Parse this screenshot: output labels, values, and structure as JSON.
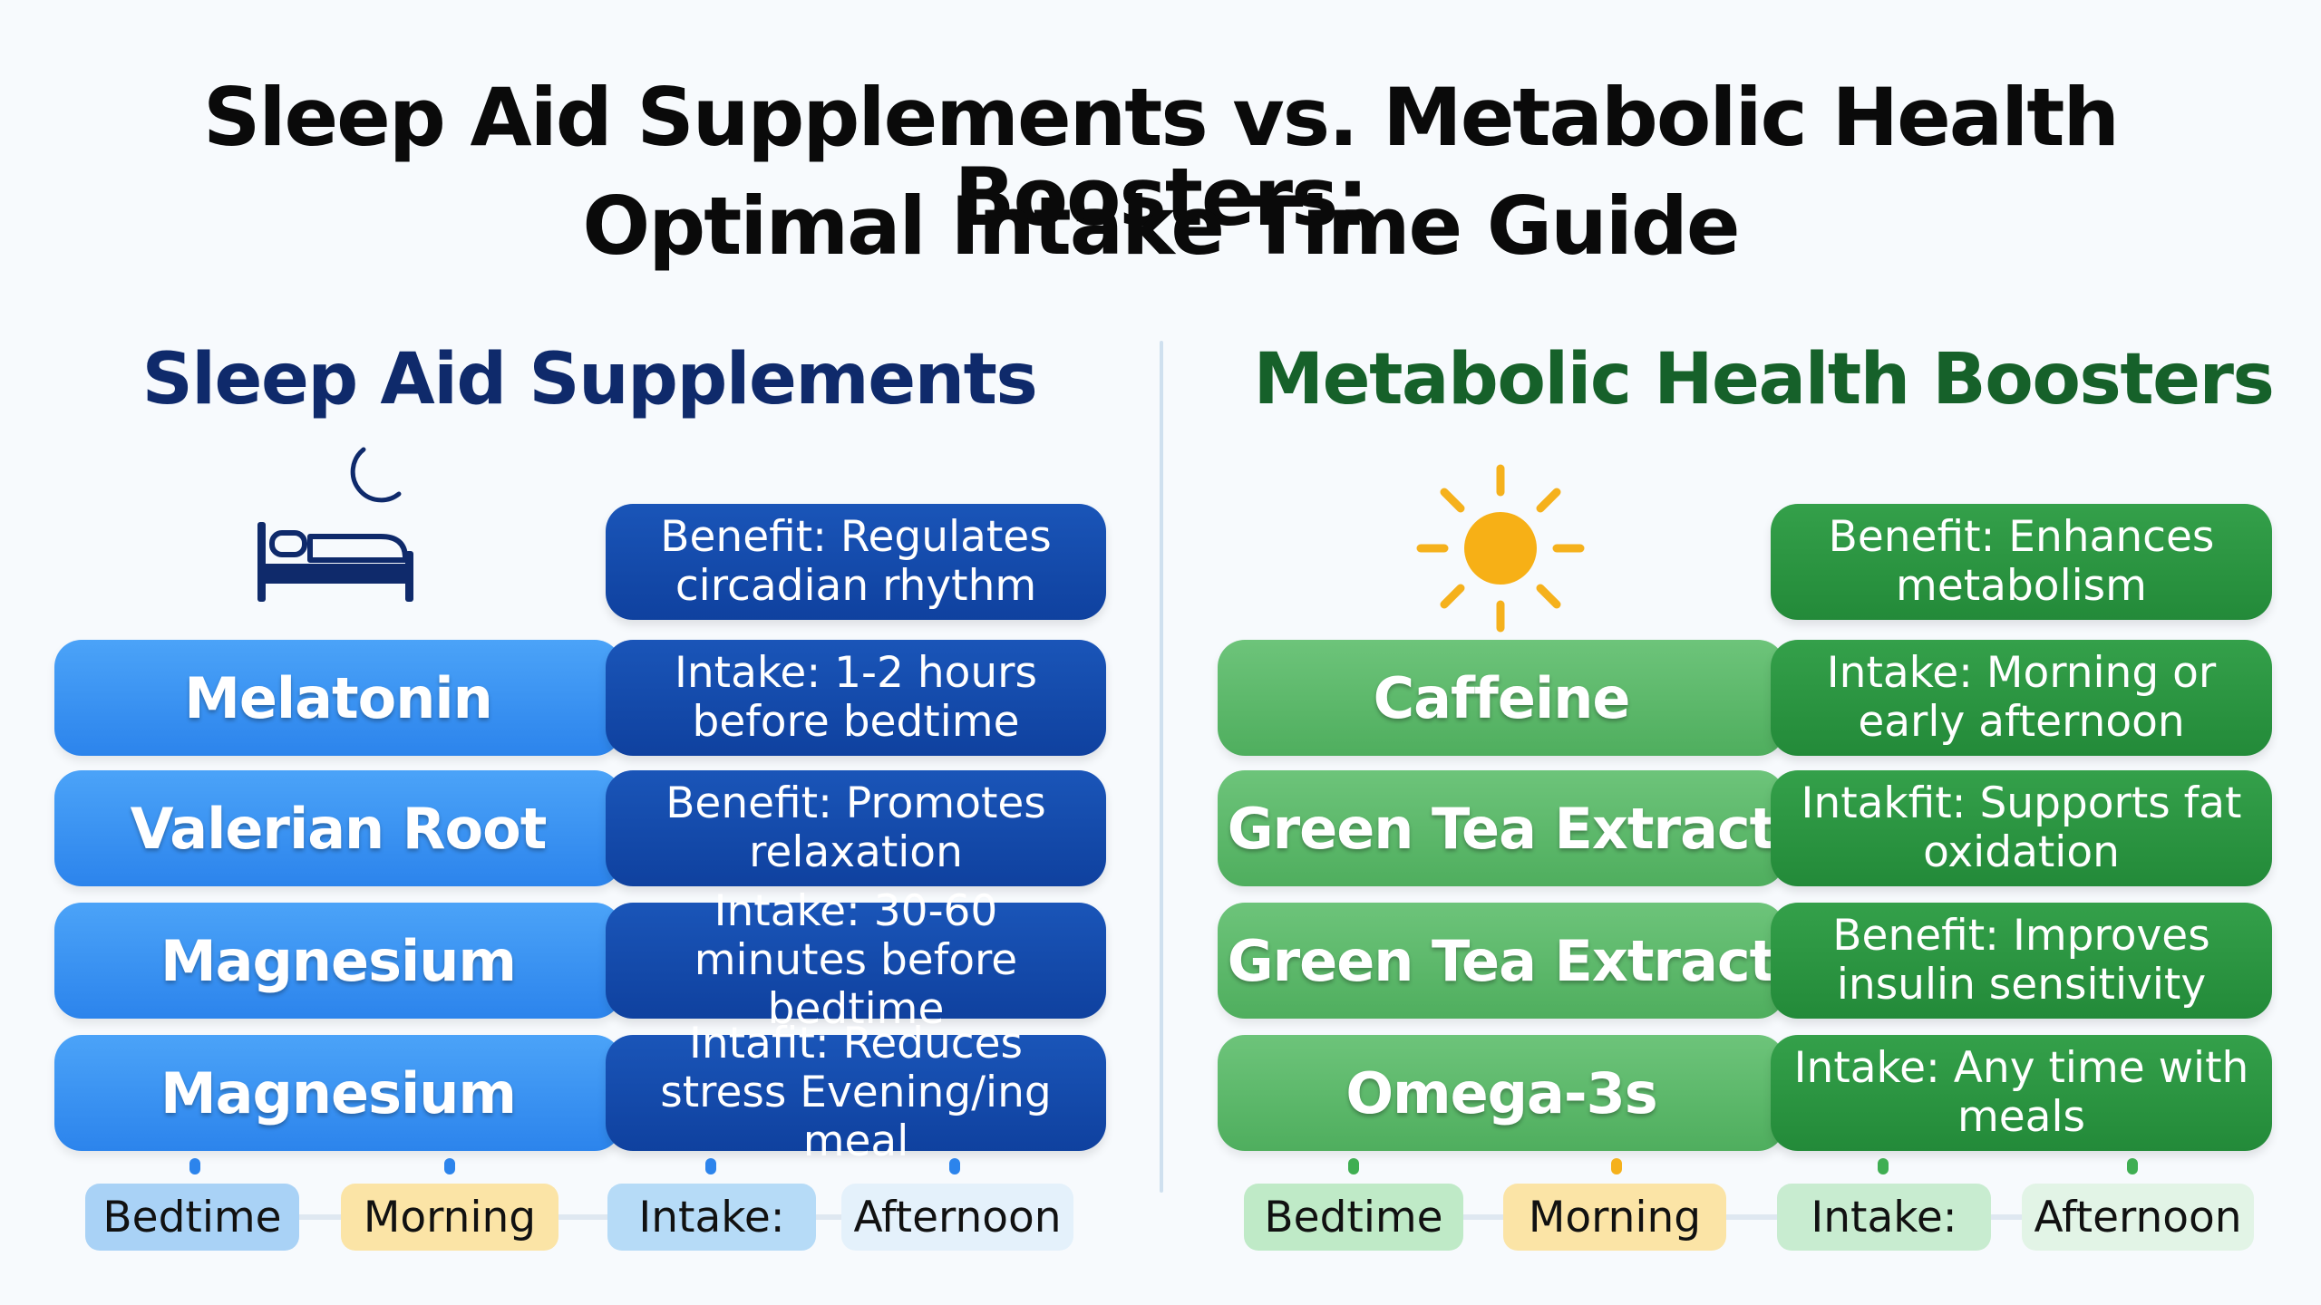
{
  "title": {
    "line1": "Sleep Aid Supplements vs. Metabolic Health Boosters:",
    "line2": "Optimal Intake Time Guide"
  },
  "sleep": {
    "heading": "Sleep Aid Supplements",
    "heading_color": "#0f2a6b",
    "icon": "bed-moon-icon",
    "top_info": "Benefit: Regulates circadian rhythm",
    "rows": [
      {
        "name": "Melatonin",
        "info": "Intake: 1-2 hours before bedtime"
      },
      {
        "name": "Valerian Root",
        "info": "Benefit: Promotes relaxation"
      },
      {
        "name": "Magnesium",
        "info": "Intake: 30-60 minutes before bedtime"
      },
      {
        "name": "Magnesium",
        "info": "Intafit: Reduces stress Evening/ing meal"
      }
    ],
    "timeline": [
      "Bedtime",
      "Morning",
      "Intake:",
      "Afternoon"
    ],
    "colors": {
      "name_pill": "#3b95f3",
      "info_pill": "#1549a8"
    }
  },
  "metabolic": {
    "heading": "Metabolic Health Boosters",
    "heading_color": "#16612a",
    "icon": "sun-icon",
    "top_info": "Benefit: Enhances metabolism",
    "rows": [
      {
        "name": "Caffeine",
        "info": "Intake: Morning or early afternoon"
      },
      {
        "name": "Green Tea Extract",
        "info": "Intakfit: Supports fat oxidation"
      },
      {
        "name": "Green Tea Extract",
        "info": "Benefit: Improves insulin sensitivity"
      },
      {
        "name": "Omega-3s",
        "info": "Intake: Any time with meals"
      }
    ],
    "timeline": [
      "Bedtime",
      "Morning",
      "Intake:",
      "Afternoon"
    ],
    "colors": {
      "name_pill": "#5db96b",
      "info_pill": "#2b9541"
    }
  }
}
